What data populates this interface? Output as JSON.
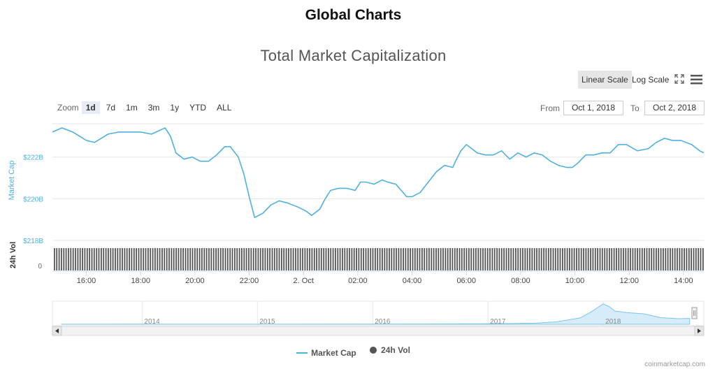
{
  "page": {
    "title": "Global Charts"
  },
  "toolbar": {
    "linear_label": "Linear Scale",
    "log_label": "Log Scale",
    "fullscreen_icon": "fullscreen-icon",
    "menu_icon": "hamburger-menu-icon"
  },
  "zoom": {
    "label": "Zoom",
    "buttons": [
      "1d",
      "7d",
      "1m",
      "3m",
      "1y",
      "YTD",
      "ALL"
    ],
    "active": "1d"
  },
  "range": {
    "from_label": "From",
    "from_value": "Oct 1, 2018",
    "to_label": "To",
    "to_value": "Oct 2, 2018"
  },
  "legend": {
    "market_cap": "Market Cap",
    "volume": "24h Vol"
  },
  "credits": "coinmarketcap.com",
  "colors": {
    "market_cap_line": "#4fb0e0",
    "volume_bars": "#555555",
    "navigator_fill": "#d6ecf8"
  },
  "chart_data": [
    {
      "type": "line",
      "title": "Total Market Capitalization",
      "ylabel": "Market Cap",
      "y_ticks": [
        "$218B",
        "$220B",
        "$222B"
      ],
      "y_tick_values": [
        218,
        220,
        222
      ],
      "ylim": [
        218,
        223.6
      ],
      "x_ticks": [
        "16:00",
        "18:00",
        "20:00",
        "22:00",
        "2. Oct",
        "02:00",
        "04:00",
        "06:00",
        "08:00",
        "10:00",
        "12:00",
        "14:00"
      ],
      "x_tick_hours": [
        16,
        18,
        20,
        22,
        24,
        26,
        28,
        30,
        32,
        34,
        36,
        38
      ],
      "xlim_hours": [
        14.75,
        38.75
      ],
      "x_hours": [
        14.75,
        15.1,
        15.5,
        16.0,
        16.3,
        16.8,
        17.2,
        17.6,
        18.0,
        18.4,
        18.9,
        19.1,
        19.3,
        19.6,
        19.9,
        20.2,
        20.5,
        20.8,
        21.1,
        21.3,
        21.6,
        21.8,
        22.0,
        22.2,
        22.5,
        22.8,
        23.1,
        23.4,
        23.8,
        24.1,
        24.3,
        24.6,
        24.8,
        25.0,
        25.3,
        25.6,
        25.9,
        26.1,
        26.3,
        26.6,
        26.9,
        27.1,
        27.4,
        27.6,
        27.8,
        28.0,
        28.3,
        28.6,
        28.9,
        29.2,
        29.5,
        29.6,
        29.8,
        30.0,
        30.4,
        30.7,
        31.0,
        31.3,
        31.6,
        31.9,
        32.2,
        32.5,
        32.8,
        33.1,
        33.4,
        33.7,
        33.9,
        34.1,
        34.4,
        34.7,
        35.0,
        35.3,
        35.6,
        35.9,
        36.3,
        36.7,
        37.0,
        37.3,
        37.6,
        37.9,
        38.3,
        38.6,
        38.75
      ],
      "series": [
        {
          "name": "Market Cap",
          "values": [
            223.2,
            223.4,
            223.2,
            222.8,
            222.7,
            223.1,
            223.2,
            223.2,
            223.2,
            223.1,
            223.4,
            223.0,
            222.2,
            221.9,
            222.0,
            221.8,
            221.8,
            222.1,
            222.5,
            222.5,
            222.0,
            221.2,
            220.1,
            219.1,
            219.3,
            219.7,
            219.9,
            219.8,
            219.6,
            219.4,
            219.2,
            219.5,
            220.0,
            220.4,
            220.5,
            220.5,
            220.4,
            220.8,
            220.8,
            220.7,
            220.9,
            220.8,
            220.7,
            220.4,
            220.1,
            220.1,
            220.3,
            220.8,
            221.3,
            221.6,
            221.5,
            221.8,
            222.3,
            222.6,
            222.2,
            222.1,
            222.1,
            222.3,
            221.9,
            222.2,
            222.0,
            222.2,
            222.1,
            221.8,
            221.6,
            221.5,
            221.5,
            221.7,
            222.1,
            222.1,
            222.2,
            222.2,
            222.6,
            222.6,
            222.3,
            222.4,
            222.7,
            222.9,
            222.8,
            222.8,
            222.6,
            222.3,
            222.2
          ]
        }
      ]
    },
    {
      "type": "bar",
      "ylabel": "24h Vol",
      "y_ticks": [
        "0"
      ]
    },
    {
      "type": "area",
      "x_ticks": [
        "2014",
        "2015",
        "2016",
        "2017",
        "2018"
      ],
      "x_years": [
        2013.3,
        2014.0,
        2015.0,
        2016.0,
        2017.0,
        2017.4,
        2017.6,
        2017.8,
        2017.9,
        2018.0,
        2018.05,
        2018.1,
        2018.2,
        2018.35,
        2018.5,
        2018.65,
        2018.75
      ],
      "values": [
        2,
        5,
        4,
        7,
        18,
        40,
        100,
        250,
        500,
        800,
        700,
        520,
        460,
        410,
        260,
        220,
        230
      ],
      "xlim_years": [
        2013.3,
        2018.8
      ],
      "ylim": [
        0,
        850
      ]
    }
  ]
}
